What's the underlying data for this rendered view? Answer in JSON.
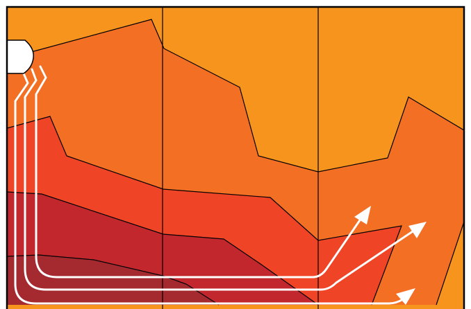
{
  "diagram": {
    "colors": {
      "frame": "#000000",
      "band_1": "#F7941E",
      "band_2": "#F26F24",
      "band_3": "#EF4426",
      "band_4": "#C1272D",
      "band_5": "#A52A2F",
      "arrows": "#FFFFFF",
      "source_fill": "#FFFFFF"
    },
    "bands": [
      {
        "name": "outer-band",
        "color_key": "band_1"
      },
      {
        "name": "band-2",
        "color_key": "band_2"
      },
      {
        "name": "band-3",
        "color_key": "band_3"
      },
      {
        "name": "band-4",
        "color_key": "band_4"
      },
      {
        "name": "inner-band",
        "color_key": "band_5"
      }
    ],
    "source_icon": "rounded-source-shape",
    "arrow_count": 3,
    "column_dividers": 2
  }
}
